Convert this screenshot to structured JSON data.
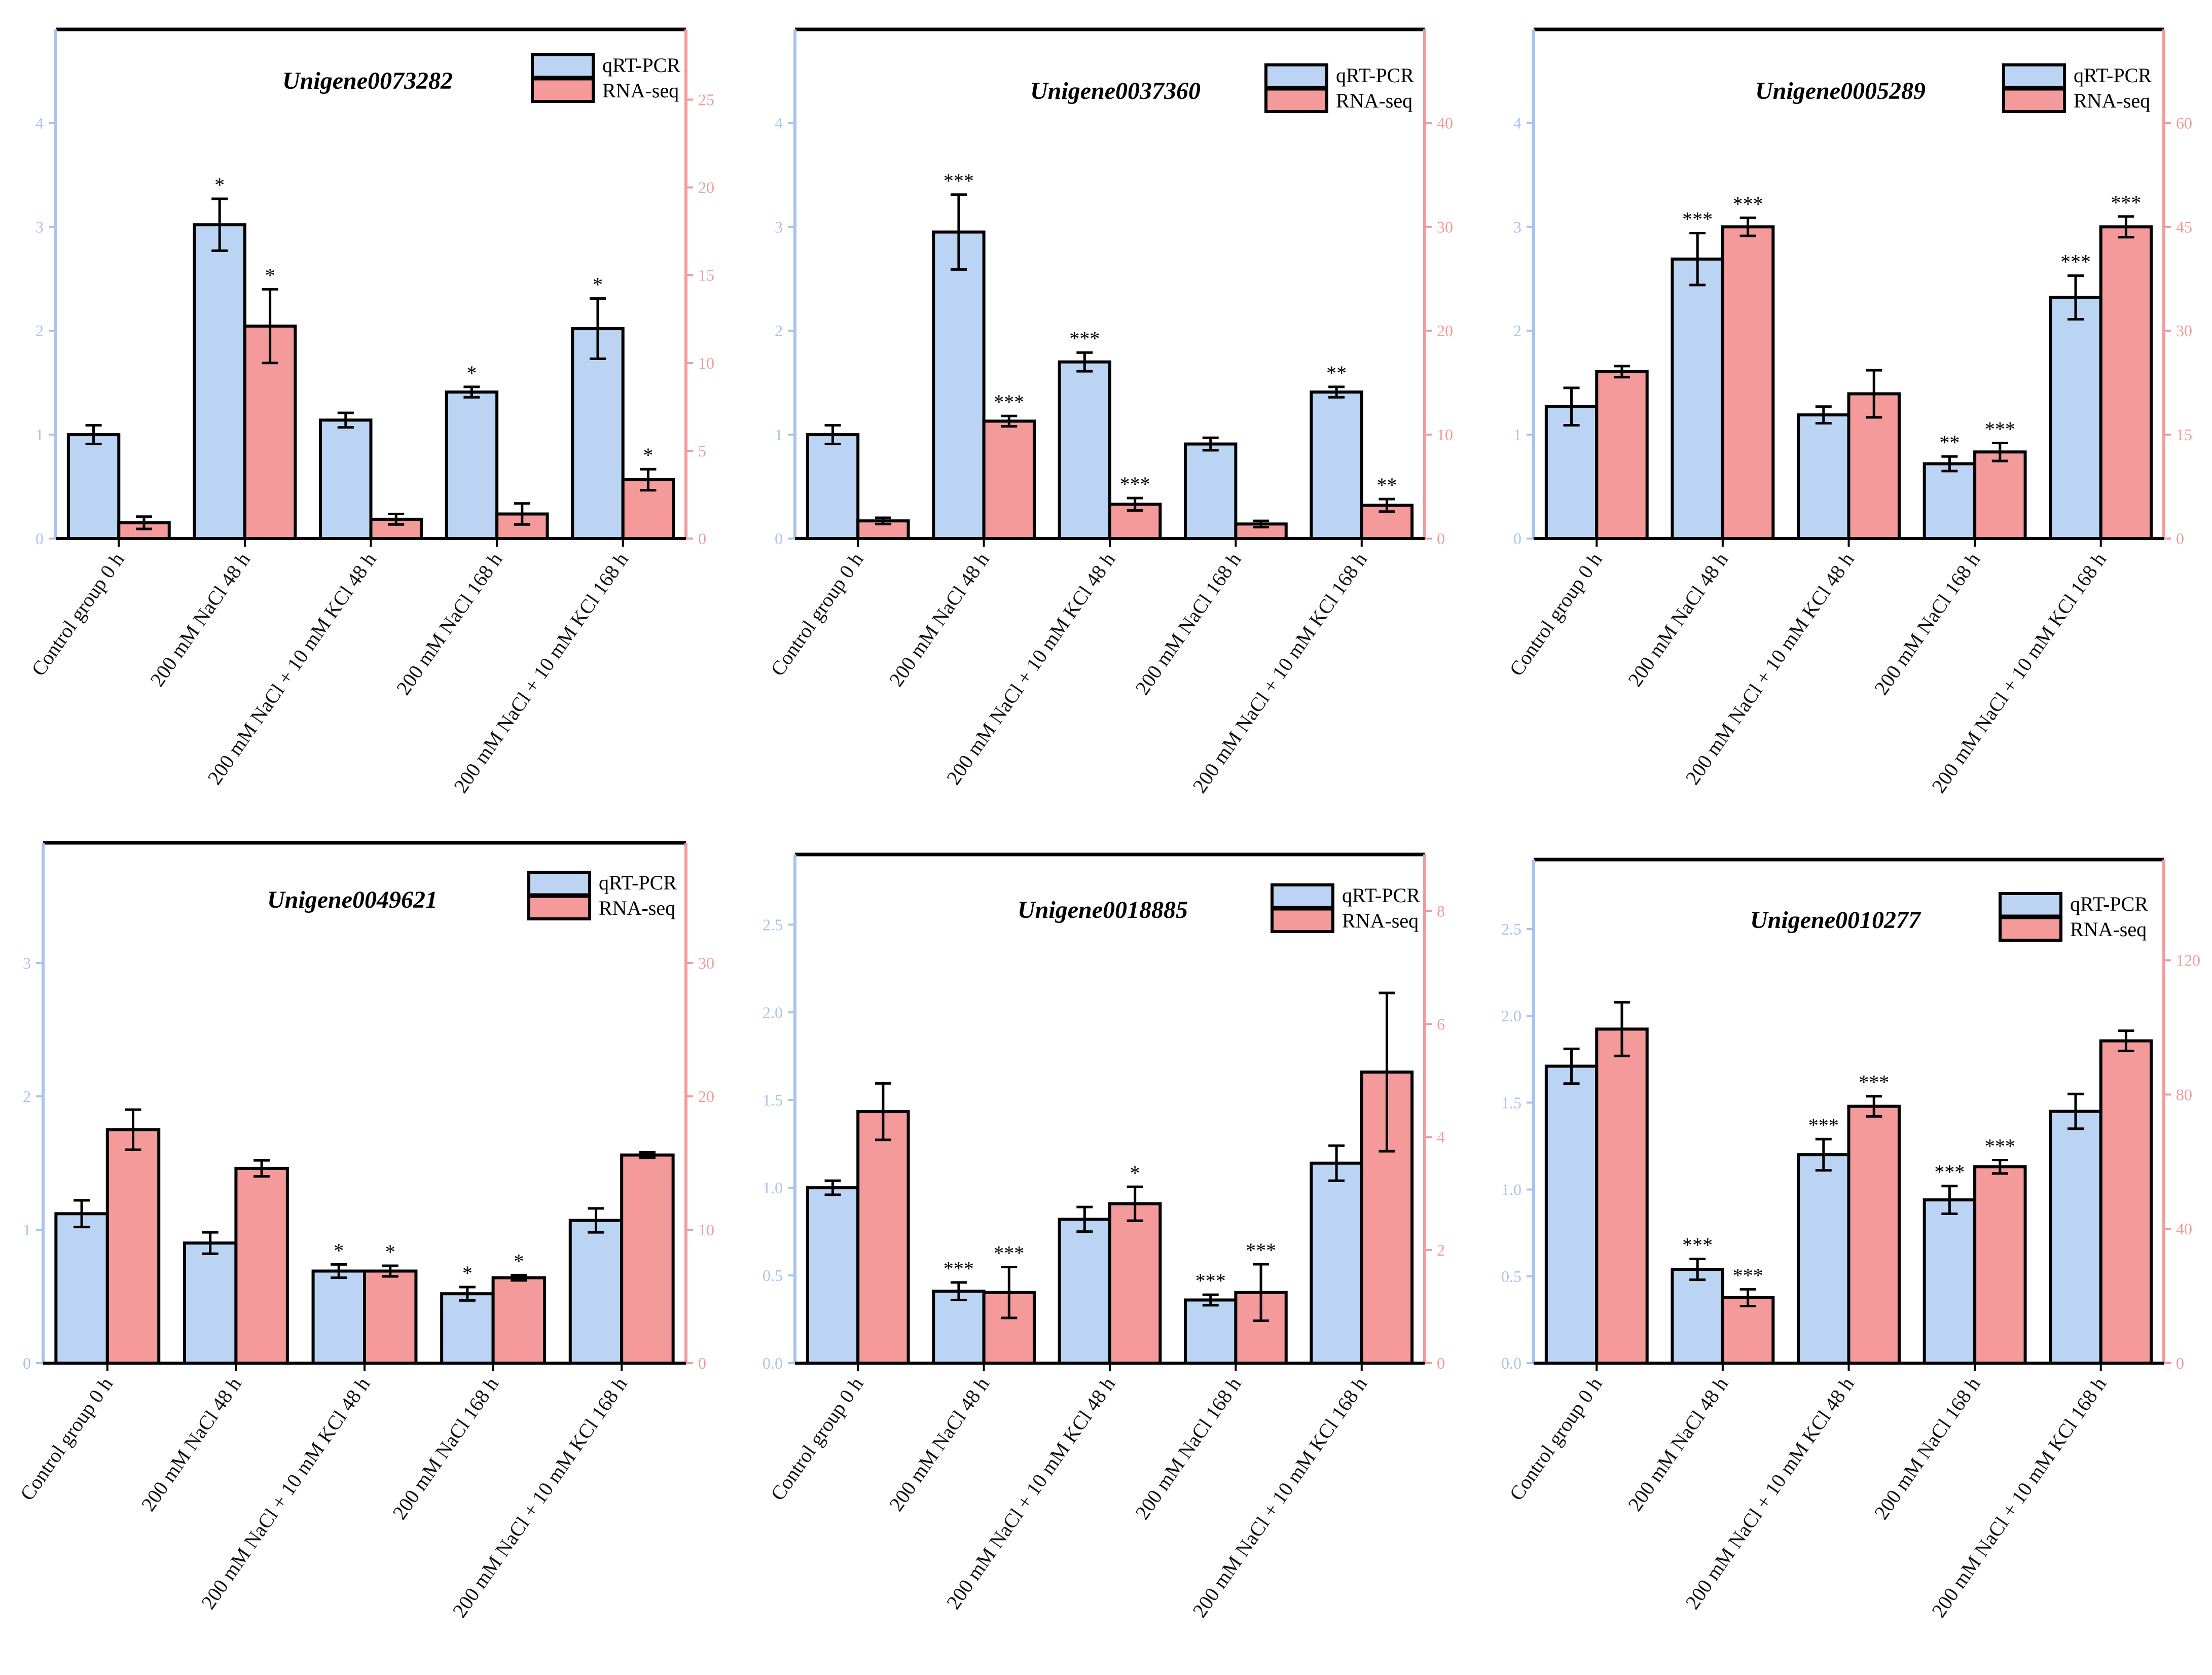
{
  "colors": {
    "qrt": "#bcd4f4",
    "rna": "#f49a9a",
    "left_axis": "#a9c4ec",
    "right_axis": "#f09c9c",
    "frame": "#000000"
  },
  "chart_data": [
    {
      "type": "bar",
      "title": "Unigene0073282",
      "categories": [
        "Control group 0 h",
        "200 mM NaCl 48 h",
        "200 mM NaCl + 10 mM KCl 48 h",
        "200 mM NaCl 168 h",
        "200 mM NaCl + 10 mM KCl 168 h"
      ],
      "legend": [
        "qRT-PCR",
        "RNA-seq"
      ],
      "left_axis": {
        "min": 0,
        "max": 4.9,
        "ticks": [
          0,
          1,
          2,
          3,
          4
        ],
        "labels": [
          "0",
          "1",
          "2",
          "3",
          "4"
        ]
      },
      "right_axis": {
        "min": 0,
        "max": 29,
        "ticks": [
          0,
          5,
          10,
          15,
          20,
          25
        ],
        "labels": [
          "0",
          "5",
          "10",
          "15",
          "20",
          "25"
        ]
      },
      "series": [
        {
          "name": "qRT-PCR",
          "axis": "left",
          "values": [
            1.0,
            3.02,
            1.14,
            1.41,
            2.02
          ],
          "errors": [
            0.09,
            0.25,
            0.07,
            0.05,
            0.29
          ],
          "sig": [
            "",
            "*",
            "",
            "*",
            "*"
          ]
        },
        {
          "name": "RNA-seq",
          "axis": "right",
          "values": [
            0.9,
            12.1,
            1.1,
            1.4,
            3.35
          ],
          "errors": [
            0.35,
            2.1,
            0.3,
            0.6,
            0.6
          ],
          "sig": [
            "",
            "*",
            "",
            "",
            "*"
          ]
        }
      ]
    },
    {
      "type": "bar",
      "title": "Unigene0037360",
      "categories": [
        "Control group 0 h",
        "200 mM NaCl 48 h",
        "200 mM NaCl + 10 mM KCl 48 h",
        "200 mM NaCl 168 h",
        "200 mM NaCl + 10 mM KCl 168 h"
      ],
      "legend": [
        "qRT-PCR",
        "RNA-seq"
      ],
      "left_axis": {
        "min": 0,
        "max": 4.9,
        "ticks": [
          0,
          1,
          2,
          3,
          4
        ],
        "labels": [
          "0",
          "1",
          "2",
          "3",
          "4"
        ]
      },
      "right_axis": {
        "min": 0,
        "max": 49,
        "ticks": [
          0,
          10,
          20,
          30,
          40
        ],
        "labels": [
          "0",
          "10",
          "20",
          "30",
          "40"
        ]
      },
      "series": [
        {
          "name": "qRT-PCR",
          "axis": "left",
          "values": [
            1.0,
            2.95,
            1.7,
            0.91,
            1.41
          ],
          "errors": [
            0.09,
            0.36,
            0.09,
            0.06,
            0.05
          ],
          "sig": [
            "",
            "***",
            "***",
            "",
            "**"
          ]
        },
        {
          "name": "RNA-seq",
          "axis": "right",
          "values": [
            1.7,
            11.3,
            3.3,
            1.4,
            3.2
          ],
          "errors": [
            0.3,
            0.5,
            0.6,
            0.3,
            0.6
          ],
          "sig": [
            "",
            "***",
            "***",
            "",
            "**"
          ]
        }
      ]
    },
    {
      "type": "bar",
      "title": "Unigene0005289",
      "categories": [
        "Control group 0 h",
        "200 mM NaCl 48 h",
        "200 mM NaCl + 10 mM KCl 48 h",
        "200 mM NaCl 168 h",
        "200 mM NaCl + 10 mM KCl 168 h"
      ],
      "legend": [
        "qRT-PCR",
        "RNA-seq"
      ],
      "left_axis": {
        "min": 0,
        "max": 4.9,
        "ticks": [
          0,
          1,
          2,
          3,
          4
        ],
        "labels": [
          "0",
          "1",
          "2",
          "3",
          "4"
        ]
      },
      "right_axis": {
        "min": 0,
        "max": 73.5,
        "ticks": [
          0,
          15,
          30,
          45,
          60
        ],
        "labels": [
          "0",
          "15",
          "30",
          "45",
          "60"
        ]
      },
      "series": [
        {
          "name": "qRT-PCR",
          "axis": "left",
          "values": [
            1.27,
            2.69,
            1.19,
            0.72,
            2.32
          ],
          "errors": [
            0.18,
            0.25,
            0.08,
            0.07,
            0.21
          ],
          "sig": [
            "",
            "***",
            "",
            "**",
            "***"
          ]
        },
        {
          "name": "RNA-seq",
          "axis": "right",
          "values": [
            24.1,
            45.0,
            20.9,
            12.5,
            45.0
          ],
          "errors": [
            0.8,
            1.3,
            3.4,
            1.3,
            1.5
          ],
          "sig": [
            "",
            "***",
            "",
            "***",
            "***"
          ]
        }
      ]
    },
    {
      "type": "bar",
      "title": "Unigene0049621",
      "categories": [
        "Control group 0 h",
        "200 mM NaCl 48 h",
        "200 mM NaCl + 10 mM KCl 48 h",
        "200 mM NaCl 168 h",
        "200 mM NaCl + 10 mM KCl 168 h"
      ],
      "legend": [
        "qRT-PCR",
        "RNA-seq"
      ],
      "left_axis": {
        "min": 0,
        "max": 3.9,
        "ticks": [
          0,
          1,
          2,
          3
        ],
        "labels": [
          "0",
          "1",
          "2",
          "3"
        ]
      },
      "right_axis": {
        "min": 0,
        "max": 39,
        "ticks": [
          0,
          10,
          20,
          30
        ],
        "labels": [
          "0",
          "10",
          "20",
          "30"
        ]
      },
      "series": [
        {
          "name": "qRT-PCR",
          "axis": "left",
          "values": [
            1.12,
            0.9,
            0.69,
            0.52,
            1.07
          ],
          "errors": [
            0.1,
            0.08,
            0.05,
            0.05,
            0.09
          ],
          "sig": [
            "",
            "",
            "*",
            "*",
            ""
          ]
        },
        {
          "name": "RNA-seq",
          "axis": "right",
          "values": [
            17.5,
            14.6,
            6.9,
            6.4,
            15.6
          ],
          "errors": [
            1.5,
            0.6,
            0.4,
            0.2,
            0.2
          ],
          "sig": [
            "",
            "",
            "*",
            "*",
            ""
          ]
        }
      ]
    },
    {
      "type": "bar",
      "title": "Unigene0018885",
      "categories": [
        "Control group 0 h",
        "200 mM NaCl 48 h",
        "200 mM NaCl + 10 mM KCl 48 h",
        "200 mM NaCl 168 h",
        "200 mM NaCl + 10 mM KCl 168 h"
      ],
      "legend": [
        "qRT-PCR",
        "RNA-seq"
      ],
      "left_axis": {
        "min": 0,
        "max": 2.9,
        "ticks": [
          0,
          0.5,
          1.0,
          1.5,
          2.0,
          2.5
        ],
        "labels": [
          "0.0",
          "0.5",
          "1.0",
          "1.5",
          "2.0",
          "2.5"
        ]
      },
      "right_axis": {
        "min": 0,
        "max": 9,
        "ticks": [
          0,
          2,
          4,
          6,
          8
        ],
        "labels": [
          "0",
          "2",
          "4",
          "6",
          "8"
        ]
      },
      "series": [
        {
          "name": "qRT-PCR",
          "axis": "left",
          "values": [
            1.0,
            0.41,
            0.82,
            0.36,
            1.14
          ],
          "errors": [
            0.04,
            0.05,
            0.07,
            0.03,
            0.1
          ],
          "sig": [
            "",
            "***",
            "",
            "***",
            ""
          ]
        },
        {
          "name": "RNA-seq",
          "axis": "right",
          "values": [
            4.45,
            1.25,
            2.82,
            1.25,
            5.15
          ],
          "errors": [
            0.5,
            0.45,
            0.3,
            0.5,
            1.4
          ],
          "sig": [
            "",
            "***",
            "*",
            "***",
            ""
          ]
        }
      ]
    },
    {
      "type": "bar",
      "title": "Unigene0010277",
      "categories": [
        "Control group 0 h",
        "200 mM NaCl 48 h",
        "200 mM NaCl + 10 mM KCl 48 h",
        "200 mM NaCl 168 h",
        "200 mM NaCl + 10 mM KCl 168 h"
      ],
      "legend": [
        "qRT-PCR",
        "RNA-seq"
      ],
      "left_axis": {
        "min": 0,
        "max": 2.9,
        "ticks": [
          0,
          0.5,
          1.0,
          1.5,
          2.0,
          2.5
        ],
        "labels": [
          "0.0",
          "0.5",
          "1.0",
          "1.5",
          "2.0",
          "2.5"
        ]
      },
      "right_axis": {
        "min": 0,
        "max": 150,
        "ticks": [
          0,
          40,
          80,
          120
        ],
        "labels": [
          "0",
          "40",
          "80",
          "120"
        ]
      },
      "series": [
        {
          "name": "qRT-PCR",
          "axis": "left",
          "values": [
            1.71,
            0.54,
            1.2,
            0.94,
            1.45
          ],
          "errors": [
            0.1,
            0.06,
            0.09,
            0.08,
            0.1
          ],
          "sig": [
            "",
            "***",
            "***",
            "***",
            ""
          ]
        },
        {
          "name": "RNA-seq",
          "axis": "right",
          "values": [
            99.5,
            19.5,
            76.5,
            58.5,
            96.0
          ],
          "errors": [
            8.0,
            2.5,
            3.0,
            2.0,
            3.0
          ],
          "sig": [
            "",
            "***",
            "***",
            "***",
            ""
          ]
        }
      ]
    }
  ]
}
